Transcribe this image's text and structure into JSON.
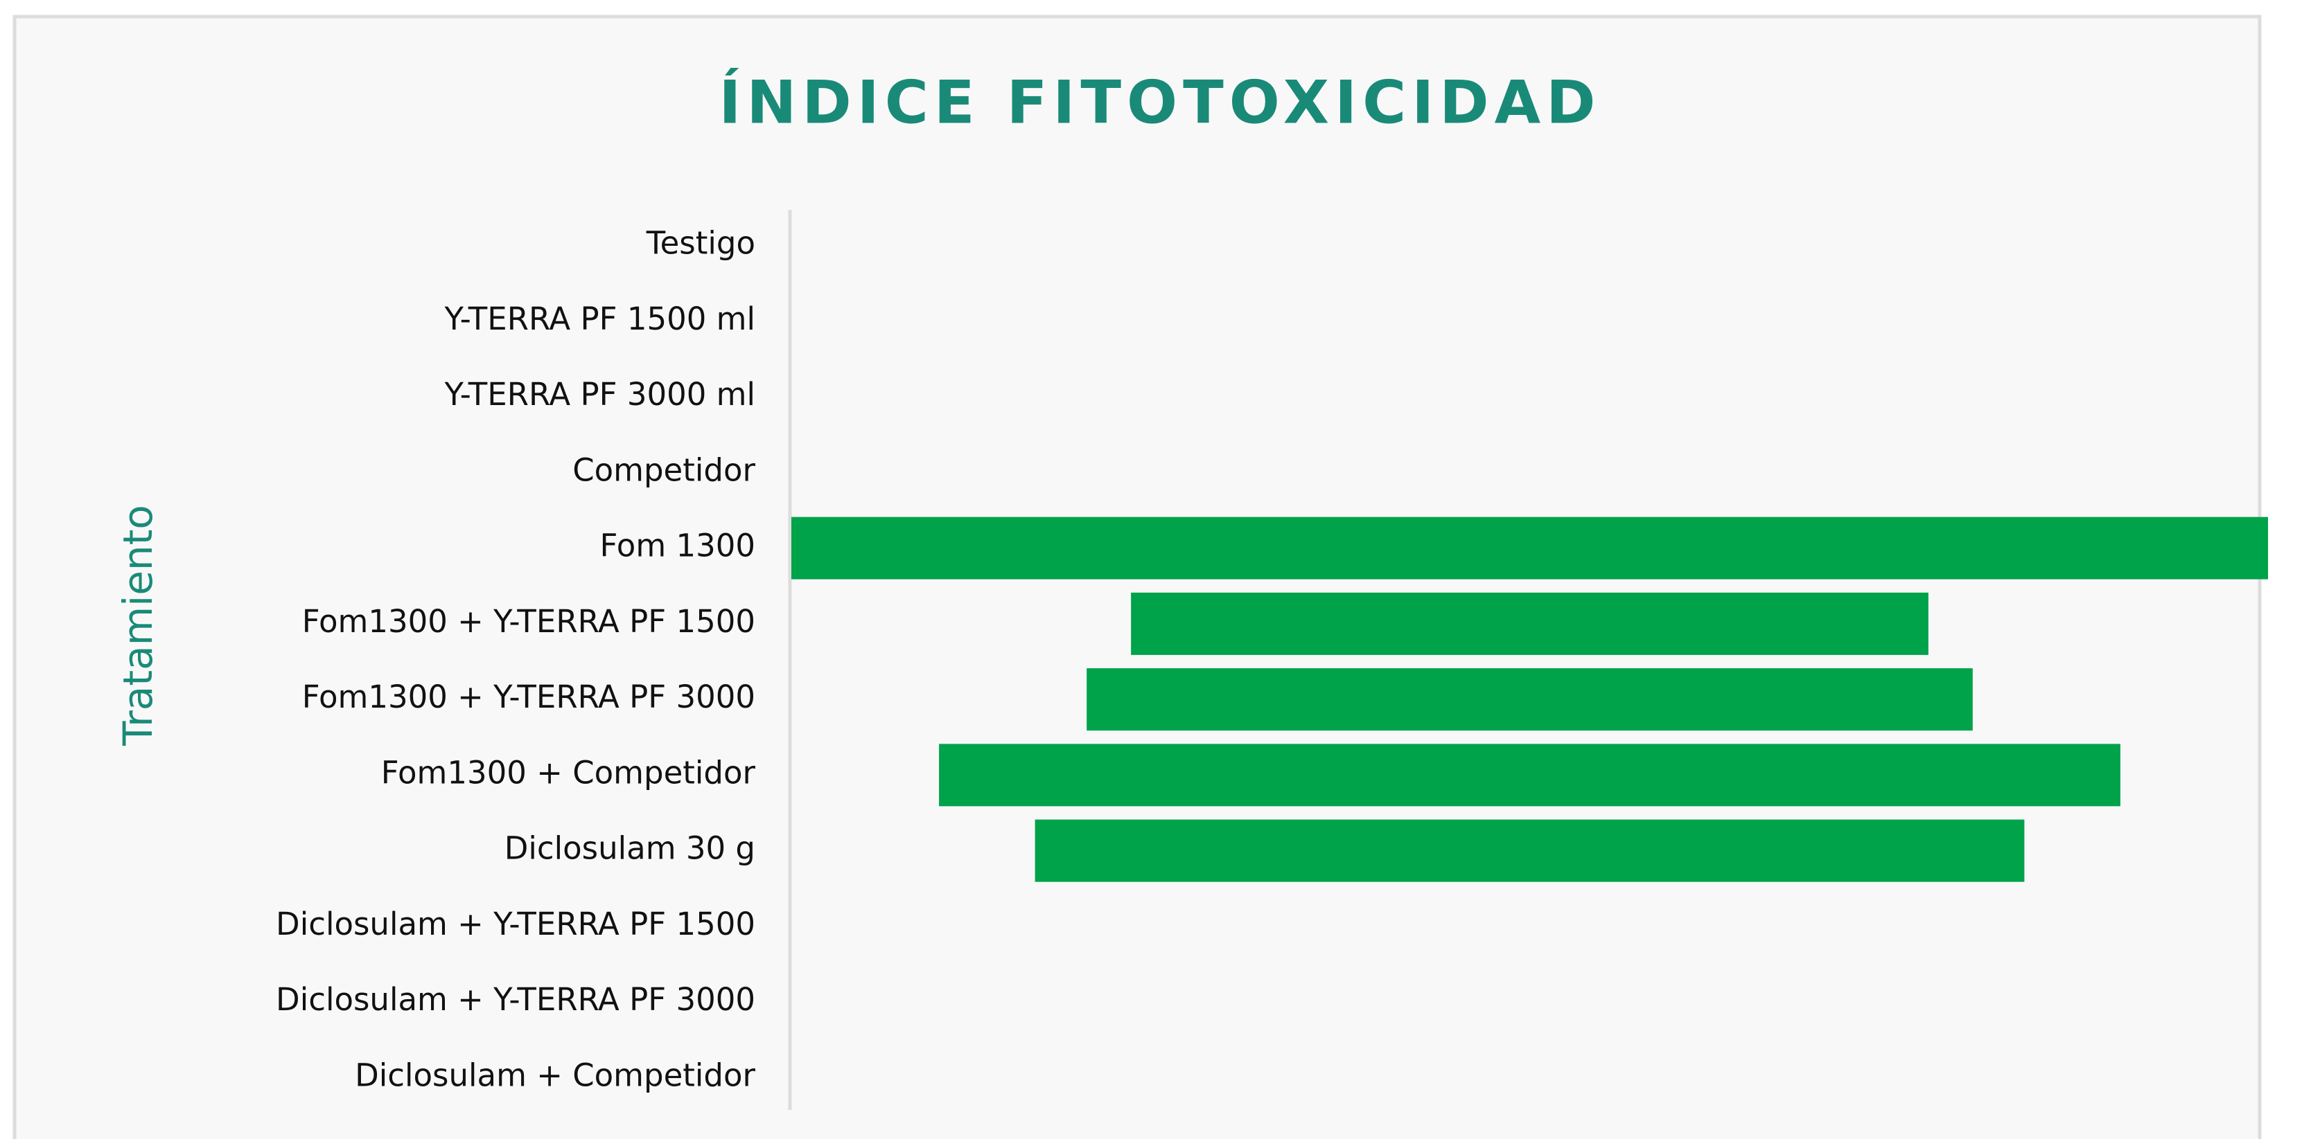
{
  "chart_data": {
    "type": "funnel",
    "title": "ÍNDICE FITOTOXICIDAD",
    "y_label": "Tratamiento",
    "categories": [
      "Testigo",
      "Y-TERRA PF 1500 ml",
      "Y-TERRA PF 3000 ml",
      "Competidor",
      "Fom 1300",
      "Fom1300 + Y-TERRA PF 1500",
      "Fom1300 + Y-TERRA PF 3000",
      "Fom1300 + Competidor",
      "Diclosulam 30 g",
      "Diclosulam + Y-TERRA PF 1500",
      "Diclosulam + Y-TERRA PF 3000",
      "Diclosulam + Competidor"
    ],
    "values": [
      0,
      0,
      0,
      0,
      100,
      54,
      60,
      80,
      67,
      0,
      0,
      0
    ],
    "color": "#00a24a",
    "xlim": [
      0,
      100
    ]
  }
}
